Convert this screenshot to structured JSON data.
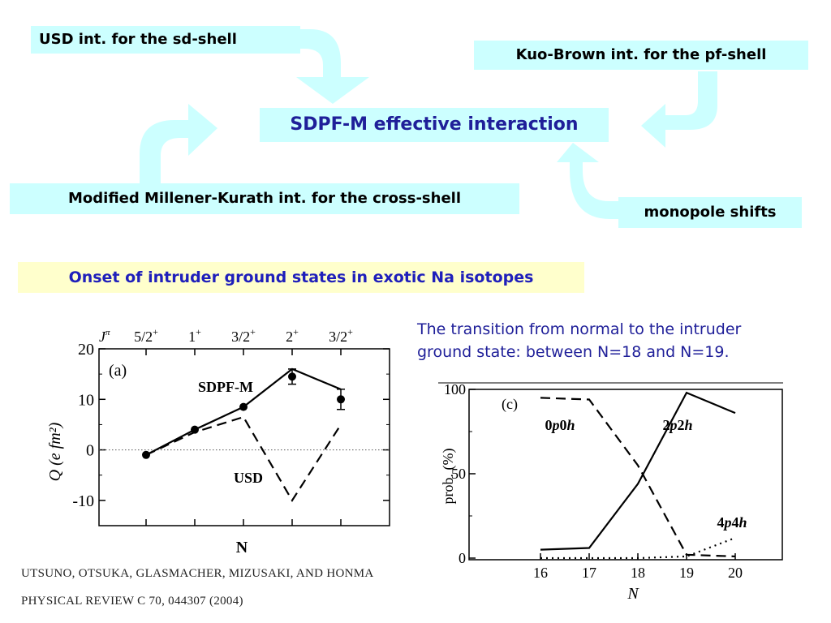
{
  "boxes": {
    "usd": "USD int. for the sd-shell",
    "kuo": "Kuo-Brown int. for the pf-shell",
    "sdpf": "SDPF-M effective interaction",
    "mmk": "Modified Millener-Kurath int. for the cross-shell",
    "mono": "monopole shifts",
    "onset": "Onset of intruder ground states in exotic Na isotopes"
  },
  "transition_text": {
    "line1": "The transition from normal to the intruder",
    "line2": "ground state:  between N=18 and N=19."
  },
  "colors": {
    "box_fill": "#ccffff",
    "arrow_fill": "#ccffff",
    "highlight_fill": "#ffffcc",
    "blue_text": "#1f1f99",
    "onset_text": "#1f1fbb"
  },
  "chart_a": {
    "panel": "(a)",
    "top_axis_label": "J",
    "top_axis_label_sup": "π",
    "top_labels": [
      {
        "base": "5/2",
        "sup": "+"
      },
      {
        "base": "1",
        "sup": "+"
      },
      {
        "base": "3/2",
        "sup": "+"
      },
      {
        "base": "2",
        "sup": "+"
      },
      {
        "base": "3/2",
        "sup": "+"
      }
    ],
    "ylabel": "Q  (e fm²)",
    "y_ticks": [
      "20",
      "10",
      "0",
      "-10"
    ],
    "curve_sdpf_label": "SDPF-M",
    "curve_usd_label": "USD",
    "xlabel": "N"
  },
  "chart_data": [
    {
      "type": "line",
      "panel": "(a)",
      "x": [
        1,
        2,
        3,
        4,
        5
      ],
      "top_labels": [
        "5/2+",
        "1+",
        "3/2+",
        "2+",
        "3/2+"
      ],
      "ylabel": "Q (e fm2)",
      "xlabel": "N",
      "ylim": [
        -15,
        20
      ],
      "series": [
        {
          "name": "SDPF-M",
          "style": "solid",
          "values": [
            -1,
            4,
            8.5,
            16,
            12
          ]
        },
        {
          "name": "USD",
          "style": "dashed",
          "values": [
            -1,
            3.5,
            6.5,
            -10,
            5
          ]
        },
        {
          "name": "",
          "style": "markers",
          "values": [
            -1,
            4,
            8.5,
            14.5,
            10
          ],
          "errors": [
            0,
            0,
            0,
            1.5,
            2
          ]
        }
      ]
    },
    {
      "type": "line",
      "panel": "(c)",
      "x": [
        16,
        17,
        18,
        19,
        20
      ],
      "xlabel": "N",
      "ylabel": "prob.  (%)",
      "ylim": [
        0,
        100
      ],
      "y_ticks": [
        "100",
        "50",
        "0"
      ],
      "x_ticks": [
        "16",
        "17",
        "18",
        "19",
        "20"
      ],
      "series": [
        {
          "name": "0p0h",
          "style": "dashed",
          "values": [
            95,
            94,
            55,
            2,
            1
          ]
        },
        {
          "name": "2p2h",
          "style": "solid",
          "values": [
            5,
            6,
            44,
            98,
            86
          ]
        },
        {
          "name": "4p4h",
          "style": "dotted",
          "values": [
            0,
            0,
            0,
            1,
            12
          ]
        }
      ]
    }
  ],
  "reference": {
    "authors": "UTSUNO, OTSUKA, GLASMACHER, MIZUSAKI, AND HONMA",
    "journal": "PHYSICAL REVIEW C 70, 044307 (2004)"
  }
}
